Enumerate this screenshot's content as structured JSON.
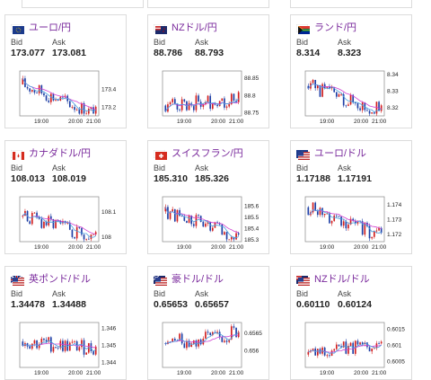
{
  "labels": {
    "bid": "Bid",
    "ask": "Ask"
  },
  "colors": {
    "pair_link": "#7a2a9c",
    "candle_up": "#d21f1f",
    "candle_down": "#1f3fa6",
    "ma_line": "#d040d0",
    "ma_line2": "#4aa0e0"
  },
  "cards": [
    {
      "pair": "ユーロ/円",
      "flag": "eu-flag",
      "bid": "173.077",
      "ask": "173.081",
      "chart_data": {
        "type": "candlestick",
        "y_ticks": [
          "173.4",
          "173.2"
        ],
        "x_ticks": [
          "19:00",
          "20:00",
          "21:00"
        ],
        "trend": "down",
        "ylim": [
          173.1,
          173.6
        ],
        "start": 173.45,
        "end": 173.12
      }
    },
    {
      "pair": "NZドル/円",
      "flag": "nz-flag",
      "bid": "88.786",
      "ask": "88.793",
      "chart_data": {
        "type": "candlestick",
        "y_ticks": [
          "88.85",
          "88.8",
          "88.75"
        ],
        "x_ticks": [
          "19:00",
          "20:00",
          "21:00"
        ],
        "trend": "up",
        "ylim": [
          88.74,
          88.87
        ],
        "start": 88.77,
        "end": 88.79
      }
    },
    {
      "pair": "ランド/円",
      "flag": "za-flag",
      "bid": "8.314",
      "ask": "8.323",
      "chart_data": {
        "type": "candlestick",
        "y_ticks": [
          "8.34",
          "8.33",
          "8.32"
        ],
        "x_ticks": [
          "19:00",
          "20:00",
          "21:00"
        ],
        "trend": "down",
        "ylim": [
          8.315,
          8.342
        ],
        "start": 8.333,
        "end": 8.318
      }
    },
    {
      "pair": "カナダドル/円",
      "flag": "ca-flag",
      "bid": "108.013",
      "ask": "108.019",
      "chart_data": {
        "type": "candlestick",
        "y_ticks": [
          "108.1",
          "108"
        ],
        "x_ticks": [
          "19:00",
          "20:00",
          "21:00"
        ],
        "trend": "flat-down",
        "ylim": [
          107.98,
          108.16
        ],
        "start": 108.08,
        "end": 108.0
      }
    },
    {
      "pair": "スイスフラン/円",
      "flag": "ch-flag",
      "bid": "185.310",
      "ask": "185.326",
      "chart_data": {
        "type": "candlestick",
        "y_ticks": [
          "185.6",
          "185.5",
          "185.4",
          "185.3"
        ],
        "x_ticks": [
          "19:00",
          "20:00",
          "21:00"
        ],
        "trend": "down",
        "ylim": [
          185.28,
          185.68
        ],
        "start": 185.55,
        "end": 185.31
      }
    },
    {
      "pair": "ユーロ/ドル",
      "flag": "eu-us-flag",
      "bid": "1.17188",
      "ask": "1.17191",
      "chart_data": {
        "type": "candlestick",
        "y_ticks": [
          "1.174",
          "1.173",
          "1.172"
        ],
        "x_ticks": [
          "19:00",
          "20:00",
          "21:00"
        ],
        "trend": "down",
        "ylim": [
          1.1715,
          1.1745
        ],
        "start": 1.1738,
        "end": 1.1719
      }
    },
    {
      "pair": "英ポンド/ドル",
      "flag": "gb-us-flag",
      "bid": "1.34478",
      "ask": "1.34488",
      "chart_data": {
        "type": "candlestick",
        "y_ticks": [
          "1.346",
          "1.345",
          "1.344"
        ],
        "x_ticks": [
          "19:00",
          "20:00",
          "21:00"
        ],
        "trend": "flat",
        "ylim": [
          1.3437,
          1.3463
        ],
        "start": 1.3452,
        "end": 1.3448
      }
    },
    {
      "pair": "豪ドル/ドル",
      "flag": "au-us-flag",
      "bid": "0.65653",
      "ask": "0.65657",
      "chart_data": {
        "type": "candlestick",
        "y_ticks": [
          "0.6565",
          "0.656"
        ],
        "x_ticks": [
          "19:00",
          "20:00",
          "21:00"
        ],
        "trend": "up",
        "ylim": [
          0.6555,
          0.6568
        ],
        "start": 0.6562,
        "end": 0.6565
      }
    },
    {
      "pair": "NZドル/ドル",
      "flag": "nz-us-flag",
      "bid": "0.60110",
      "ask": "0.60124",
      "chart_data": {
        "type": "candlestick",
        "y_ticks": [
          "0.6015",
          "0.601",
          "0.6005"
        ],
        "x_ticks": [
          "19:00",
          "20:00",
          "21:00"
        ],
        "trend": "up",
        "ylim": [
          0.6003,
          0.6017
        ],
        "start": 0.6007,
        "end": 0.6011
      }
    }
  ]
}
